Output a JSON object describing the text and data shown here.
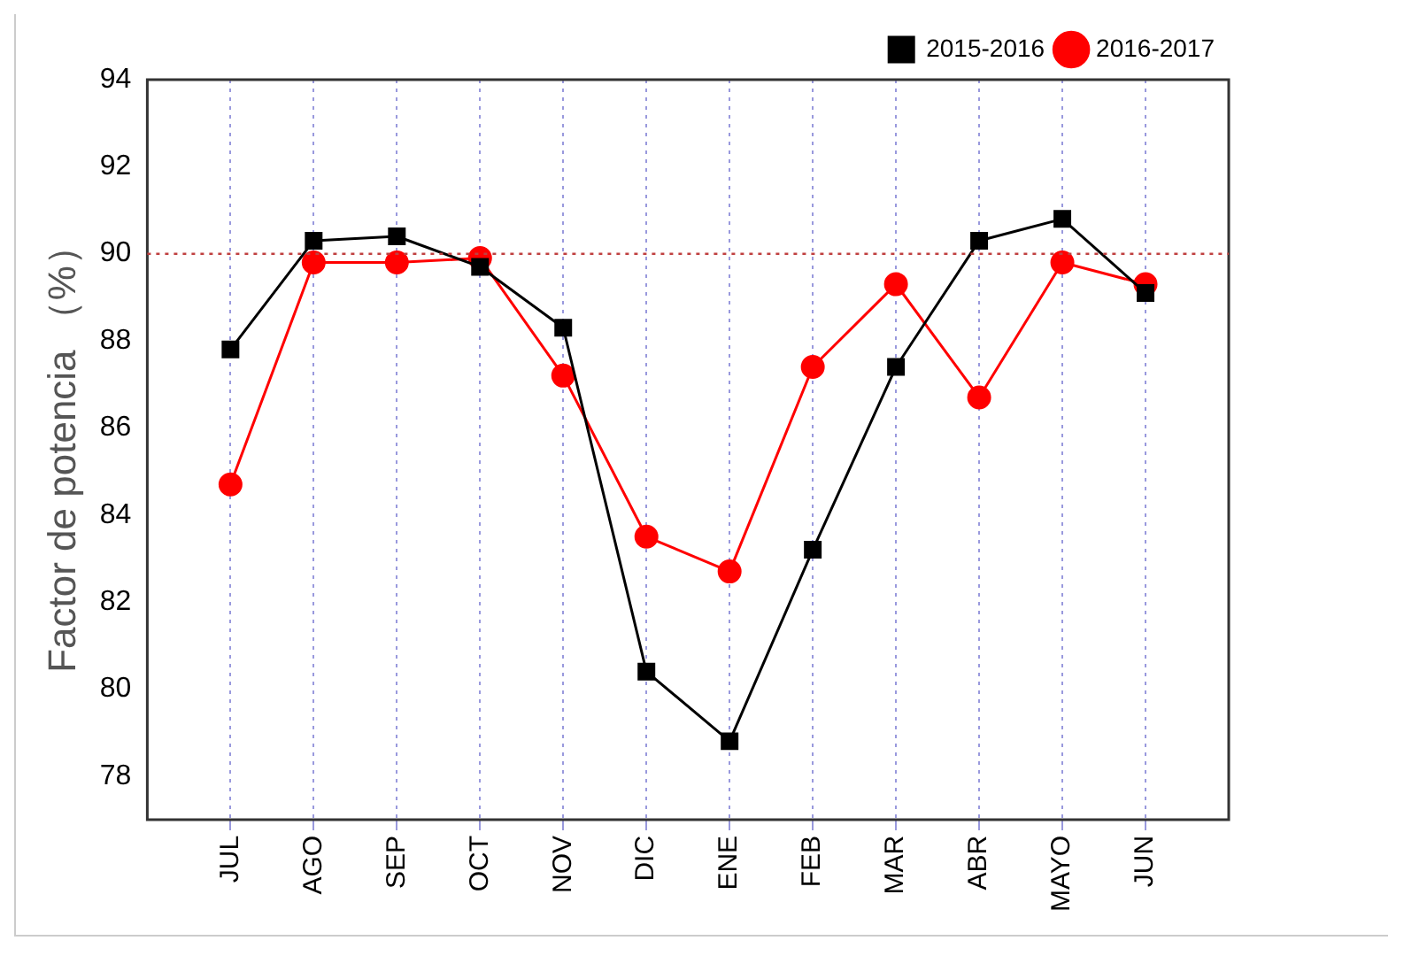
{
  "chart_data": {
    "type": "line",
    "ylabel": "Factor de potencia （%）",
    "categories": [
      "JUL",
      "AGO",
      "SEP",
      "OCT",
      "NOV",
      "DIC",
      "ENE",
      "FEB",
      "MAR",
      "ABR",
      "MAYO",
      "JUN"
    ],
    "series": [
      {
        "name": "2015-2016",
        "color": "#000000",
        "marker": "square",
        "values": [
          87.8,
          90.3,
          90.4,
          89.7,
          88.3,
          80.4,
          78.8,
          83.2,
          87.4,
          90.3,
          90.8,
          89.1
        ]
      },
      {
        "name": "2016-2017",
        "color": "#ff0000",
        "marker": "circle",
        "values": [
          84.7,
          89.8,
          89.8,
          89.9,
          87.2,
          83.5,
          82.7,
          87.4,
          89.3,
          86.7,
          89.8,
          89.3
        ]
      }
    ],
    "ylim": [
      77,
      94
    ],
    "yticks": [
      78,
      80,
      82,
      84,
      86,
      88,
      90,
      92,
      94
    ],
    "grid": "x",
    "legend": "top right",
    "line_style": "solid",
    "ref_lines": [
      {
        "axis": "y",
        "value": 90,
        "color": "#c04040",
        "line_style": "dotted"
      }
    ]
  }
}
